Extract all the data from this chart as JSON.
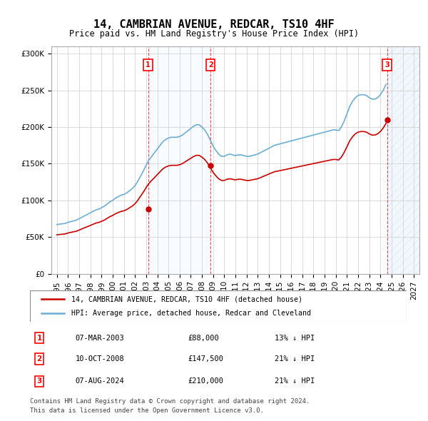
{
  "title": "14, CAMBRIAN AVENUE, REDCAR, TS10 4HF",
  "subtitle": "Price paid vs. HM Land Registry's House Price Index (HPI)",
  "legend_line1": "14, CAMBRIAN AVENUE, REDCAR, TS10 4HF (detached house)",
  "legend_line2": "HPI: Average price, detached house, Redcar and Cleveland",
  "footer_line1": "Contains HM Land Registry data © Crown copyright and database right 2024.",
  "footer_line2": "This data is licensed under the Open Government Licence v3.0.",
  "sales": [
    {
      "label": "1",
      "date": "07-MAR-2003",
      "price": 88000,
      "pct": "13%",
      "dir": "↓"
    },
    {
      "label": "2",
      "date": "10-OCT-2008",
      "price": 147500,
      "pct": "21%",
      "dir": "↓"
    },
    {
      "label": "3",
      "date": "07-AUG-2024",
      "price": 210000,
      "pct": "21%",
      "dir": "↓"
    }
  ],
  "sale_years": [
    2003.18,
    2008.77,
    2024.6
  ],
  "hpi_color": "#6baed6",
  "price_color": "#cc0000",
  "shade_color": "#ddeeff",
  "hatch_color": "#aaccee",
  "ylim": [
    0,
    310000
  ],
  "yticks": [
    0,
    50000,
    100000,
    150000,
    200000,
    250000,
    300000
  ],
  "xlim_start": 1994.5,
  "xlim_end": 2027.5,
  "hpi_data": {
    "years": [
      1995.0,
      1995.25,
      1995.5,
      1995.75,
      1996.0,
      1996.25,
      1996.5,
      1996.75,
      1997.0,
      1997.25,
      1997.5,
      1997.75,
      1998.0,
      1998.25,
      1998.5,
      1998.75,
      1999.0,
      1999.25,
      1999.5,
      1999.75,
      2000.0,
      2000.25,
      2000.5,
      2000.75,
      2001.0,
      2001.25,
      2001.5,
      2001.75,
      2002.0,
      2002.25,
      2002.5,
      2002.75,
      2003.0,
      2003.25,
      2003.5,
      2003.75,
      2004.0,
      2004.25,
      2004.5,
      2004.75,
      2005.0,
      2005.25,
      2005.5,
      2005.75,
      2006.0,
      2006.25,
      2006.5,
      2006.75,
      2007.0,
      2007.25,
      2007.5,
      2007.75,
      2008.0,
      2008.25,
      2008.5,
      2008.75,
      2009.0,
      2009.25,
      2009.5,
      2009.75,
      2010.0,
      2010.25,
      2010.5,
      2010.75,
      2011.0,
      2011.25,
      2011.5,
      2011.75,
      2012.0,
      2012.25,
      2012.5,
      2012.75,
      2013.0,
      2013.25,
      2013.5,
      2013.75,
      2014.0,
      2014.25,
      2014.5,
      2014.75,
      2015.0,
      2015.25,
      2015.5,
      2015.75,
      2016.0,
      2016.25,
      2016.5,
      2016.75,
      2017.0,
      2017.25,
      2017.5,
      2017.75,
      2018.0,
      2018.25,
      2018.5,
      2018.75,
      2019.0,
      2019.25,
      2019.5,
      2019.75,
      2020.0,
      2020.25,
      2020.5,
      2020.75,
      2021.0,
      2021.25,
      2021.5,
      2021.75,
      2022.0,
      2022.25,
      2022.5,
      2022.75,
      2023.0,
      2023.25,
      2023.5,
      2023.75,
      2024.0,
      2024.25,
      2024.5
    ],
    "values": [
      67000,
      67500,
      68000,
      68500,
      70000,
      71000,
      72000,
      73000,
      75000,
      77000,
      79000,
      81000,
      83000,
      85000,
      87000,
      88000,
      90000,
      92000,
      95000,
      98000,
      100000,
      103000,
      105000,
      107000,
      108000,
      110000,
      113000,
      116000,
      120000,
      126000,
      133000,
      140000,
      148000,
      155000,
      160000,
      165000,
      170000,
      175000,
      180000,
      183000,
      185000,
      186000,
      186000,
      186000,
      187000,
      189000,
      192000,
      195000,
      198000,
      201000,
      203000,
      203000,
      200000,
      196000,
      190000,
      182000,
      174000,
      168000,
      163000,
      160000,
      160000,
      162000,
      163000,
      162000,
      161000,
      162000,
      162000,
      161000,
      160000,
      160000,
      161000,
      162000,
      163000,
      165000,
      167000,
      169000,
      171000,
      173000,
      175000,
      176000,
      177000,
      178000,
      179000,
      180000,
      181000,
      182000,
      183000,
      184000,
      185000,
      186000,
      187000,
      188000,
      189000,
      190000,
      191000,
      192000,
      193000,
      194000,
      195000,
      196000,
      196000,
      195000,
      200000,
      208000,
      218000,
      228000,
      235000,
      240000,
      243000,
      244000,
      244000,
      243000,
      240000,
      238000,
      238000,
      240000,
      244000,
      250000,
      258000
    ]
  },
  "price_indexed_data": {
    "years": [
      1995.0,
      1995.25,
      1995.5,
      1995.75,
      1996.0,
      1996.25,
      1996.5,
      1996.75,
      1997.0,
      1997.25,
      1997.5,
      1997.75,
      1998.0,
      1998.25,
      1998.5,
      1998.75,
      1999.0,
      1999.25,
      1999.5,
      1999.75,
      2000.0,
      2000.25,
      2000.5,
      2000.75,
      2001.0,
      2001.25,
      2001.5,
      2001.75,
      2002.0,
      2002.25,
      2002.5,
      2002.75,
      2003.0,
      2003.25,
      2003.5,
      2003.75,
      2004.0,
      2004.25,
      2004.5,
      2004.75,
      2005.0,
      2005.25,
      2005.5,
      2005.75,
      2006.0,
      2006.25,
      2006.5,
      2006.75,
      2007.0,
      2007.25,
      2007.5,
      2007.75,
      2008.0,
      2008.25,
      2008.5,
      2008.75,
      2009.0,
      2009.25,
      2009.5,
      2009.75,
      2010.0,
      2010.25,
      2010.5,
      2010.75,
      2011.0,
      2011.25,
      2011.5,
      2011.75,
      2012.0,
      2012.25,
      2012.5,
      2012.75,
      2013.0,
      2013.25,
      2013.5,
      2013.75,
      2014.0,
      2014.25,
      2014.5,
      2014.75,
      2015.0,
      2015.25,
      2015.5,
      2015.75,
      2016.0,
      2016.25,
      2016.5,
      2016.75,
      2017.0,
      2017.25,
      2017.5,
      2017.75,
      2018.0,
      2018.25,
      2018.5,
      2018.75,
      2019.0,
      2019.25,
      2019.5,
      2019.75,
      2020.0,
      2020.25,
      2020.5,
      2020.75,
      2021.0,
      2021.25,
      2021.5,
      2021.75,
      2022.0,
      2022.25,
      2022.5,
      2022.75,
      2023.0,
      2023.25,
      2023.5,
      2023.75,
      2024.0,
      2024.25,
      2024.5
    ],
    "values": [
      53000,
      53400,
      53800,
      54200,
      55500,
      56300,
      57100,
      57900,
      59500,
      61100,
      62700,
      64200,
      65800,
      67400,
      69000,
      69800,
      71400,
      73000,
      75400,
      77700,
      79400,
      81700,
      83400,
      84900,
      85700,
      87300,
      89700,
      92100,
      95300,
      100100,
      105700,
      111200,
      117500,
      123100,
      127100,
      131100,
      135100,
      139100,
      143000,
      145400,
      146900,
      147700,
      147700,
      147700,
      148500,
      150100,
      152500,
      155000,
      157300,
      159700,
      161300,
      161300,
      158900,
      155700,
      150900,
      144600,
      138200,
      133400,
      129400,
      127100,
      127100,
      128700,
      129400,
      128700,
      127900,
      128700,
      128700,
      127900,
      127100,
      127100,
      127900,
      128700,
      129400,
      131000,
      132600,
      134200,
      135800,
      137400,
      139000,
      139700,
      140500,
      141300,
      142100,
      142900,
      143700,
      144500,
      145300,
      146100,
      146900,
      147700,
      148500,
      149300,
      150100,
      150900,
      151700,
      152500,
      153300,
      154100,
      154900,
      155700,
      155700,
      154900,
      158900,
      165200,
      173100,
      181100,
      186600,
      190600,
      193000,
      193800,
      193800,
      193000,
      190600,
      189000,
      189000,
      190600,
      193800,
      198500,
      204900
    ]
  }
}
